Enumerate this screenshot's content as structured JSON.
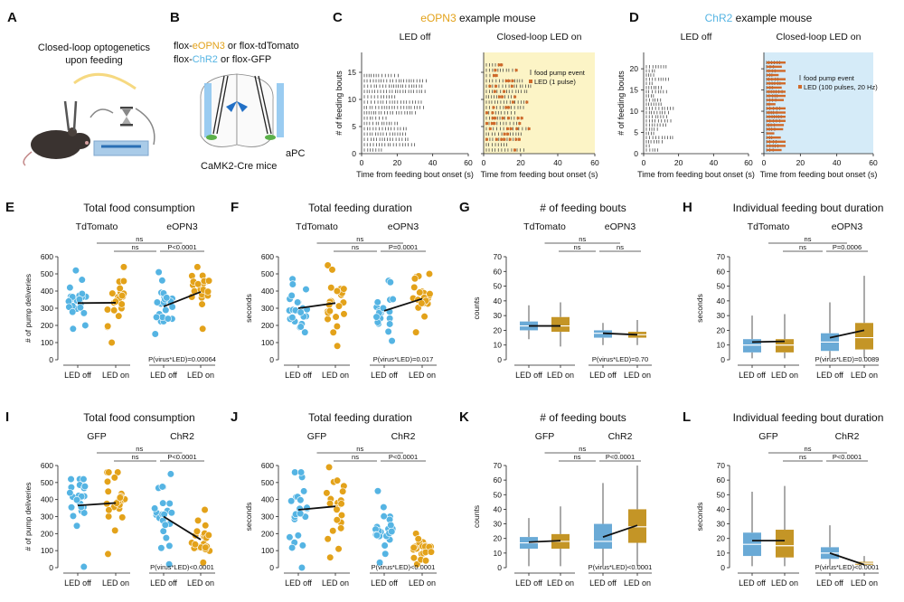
{
  "colors": {
    "blue": "#55b4e3",
    "orange": "#e3a21a",
    "dark_orange": "#d39a1e",
    "box_blue": "#6aaad6",
    "box_orange": "#c49526",
    "tick_orange": "#d06a2a",
    "yellow_bg": "#fcf4c6",
    "blue_bg": "#d5ebf8"
  },
  "panelA": {
    "letter": "A",
    "title1": "Closed-loop optogenetics",
    "title2": "upon feeding"
  },
  "panelB": {
    "letter": "B",
    "line1": [
      {
        "t": "flox-",
        "c": "#111"
      },
      {
        "t": "eOPN3",
        "c": "#e3a21a"
      },
      {
        "t": " or flox-tdTomato",
        "c": "#111"
      }
    ],
    "line2": [
      {
        "t": "flox-",
        "c": "#111"
      },
      {
        "t": "ChR2",
        "c": "#55b4e3"
      },
      {
        "t": " or flox-GFP",
        "c": "#111"
      }
    ],
    "region": "aPC",
    "mouse": "CaMK2-Cre mice"
  },
  "rasters": [
    {
      "letter": "C",
      "title": "eOPN3",
      "title_suffix": " example mouse",
      "title_color": "#e3a21a",
      "left_label": "LED off",
      "right_label": "Closed-loop LED on",
      "ylabel": "# of feeding bouts",
      "xlabel": "Time from feeding bout onset (s)",
      "yticks": [
        "0",
        "5",
        "10",
        "15"
      ],
      "xticks": [
        "0",
        "20",
        "40",
        "60"
      ],
      "legend1": "food pump event",
      "legend2": "LED (1 pulse)",
      "bouts_off": 15,
      "bouts_on": 17,
      "bg": "#fcf4c6"
    },
    {
      "letter": "D",
      "title": "ChR2",
      "title_suffix": " example mouse",
      "title_color": "#55b4e3",
      "left_label": "LED off",
      "right_label": "Closed-loop LED on",
      "ylabel": "# of feeding bouts",
      "xlabel": "Time from feeding bout onset (s)",
      "yticks": [
        "0",
        "5",
        "10",
        "15",
        "20"
      ],
      "xticks": [
        "0",
        "20",
        "40",
        "60"
      ],
      "legend1": "food pump event",
      "legend2": "LED (100 pulses, 20 Hz)",
      "bouts_off": 21,
      "bouts_on": 22,
      "bg": "#d5ebf8"
    }
  ],
  "chart_data": [
    {
      "letter": "E",
      "type": "scatter",
      "title": "Total food consumption",
      "ylabel": "# of pump deliveries",
      "ylim": [
        0,
        600
      ],
      "yticks": [
        0,
        100,
        200,
        300,
        400,
        500,
        600
      ],
      "group1": "TdTomato",
      "group2": "eOPN3",
      "group2_color": "#e3a21a",
      "xtick_labels": [
        "LED off",
        "LED on",
        "LED off",
        "LED on"
      ],
      "sig_top": "ns",
      "sig_left": "ns",
      "sig_right": "P<0.0001",
      "interaction": "P(virus*LED)=0.00064",
      "means": [
        330,
        332,
        310,
        395
      ],
      "counts": [
        22,
        22,
        22,
        22
      ],
      "ranges": [
        [
          180,
          520
        ],
        [
          100,
          540
        ],
        [
          150,
          510
        ],
        [
          180,
          540
        ]
      ]
    },
    {
      "letter": "F",
      "type": "scatter",
      "title": "Total feeding duration",
      "ylabel": "seconds",
      "ylim": [
        0,
        600
      ],
      "yticks": [
        0,
        100,
        200,
        300,
        400,
        500,
        600
      ],
      "group1": "TdTomato",
      "group2": "eOPN3",
      "group2_color": "#e3a21a",
      "xtick_labels": [
        "LED off",
        "LED on",
        "LED off",
        "LED on"
      ],
      "sig_top": "ns",
      "sig_left": "ns",
      "sig_right": "P=0.0001",
      "interaction": "P(virus*LED)=0.017",
      "means": [
        300,
        330,
        285,
        355
      ],
      "counts": [
        22,
        22,
        22,
        22
      ],
      "ranges": [
        [
          160,
          470
        ],
        [
          80,
          550
        ],
        [
          110,
          460
        ],
        [
          160,
          500
        ]
      ]
    },
    {
      "letter": "G",
      "type": "box",
      "title": "# of feeding bouts",
      "ylabel": "counts",
      "ylim": [
        0,
        70
      ],
      "yticks": [
        0,
        10,
        20,
        30,
        40,
        50,
        60,
        70
      ],
      "group1": "TdTomato",
      "group2": "eOPN3",
      "group2_color": "#e3a21a",
      "xtick_labels": [
        "LED off",
        "LED on",
        "LED off",
        "LED on"
      ],
      "sig_top": "ns",
      "sig_left": "ns",
      "sig_right": "ns",
      "interaction": "P(virus*LED)=0.70",
      "boxes": [
        [
          14,
          20,
          23,
          26,
          37
        ],
        [
          9,
          19,
          23,
          29,
          39
        ],
        [
          10,
          15,
          18,
          20,
          25
        ],
        [
          10,
          15,
          17,
          19,
          27
        ]
      ],
      "means": [
        23,
        23,
        18,
        17
      ]
    },
    {
      "letter": "H",
      "type": "box",
      "title": "Individual feeding bout duration",
      "ylabel": "seconds",
      "ylim": [
        0,
        70
      ],
      "yticks": [
        0,
        10,
        20,
        30,
        40,
        50,
        60,
        70
      ],
      "group1": "TdTomato",
      "group2": "eOPN3",
      "group2_color": "#e3a21a",
      "xtick_labels": [
        "LED off",
        "LED on",
        "LED off",
        "LED on"
      ],
      "sig_top": "ns",
      "sig_left": "ns",
      "sig_right": "P=0.0006",
      "interaction": "P(virus*LED)=0.0089",
      "boxes": [
        [
          1,
          5,
          10,
          14,
          30
        ],
        [
          1,
          5,
          10,
          14,
          31
        ],
        [
          1,
          6,
          12,
          18,
          39
        ],
        [
          1,
          7,
          15,
          25,
          57
        ]
      ],
      "means": [
        12,
        12.5,
        15,
        20
      ]
    },
    {
      "letter": "I",
      "type": "scatter",
      "title": "Total food consumption",
      "ylabel": "# of pump deliveries",
      "ylim": [
        0,
        600
      ],
      "yticks": [
        0,
        100,
        200,
        300,
        400,
        500,
        600
      ],
      "group1": "GFP",
      "group2": "ChR2",
      "group2_color": "#55b4e3",
      "xtick_labels": [
        "LED off",
        "LED on",
        "LED off",
        "LED on"
      ],
      "sig_top": "ns",
      "sig_left": "ns",
      "sig_right": "P<0.0001",
      "interaction": "P(virus*LED)<0.0001",
      "means": [
        365,
        380,
        300,
        165
      ],
      "counts": [
        22,
        22,
        22,
        22
      ],
      "ranges": [
        [
          5,
          520
        ],
        [
          80,
          560
        ],
        [
          20,
          550
        ],
        [
          30,
          340
        ]
      ]
    },
    {
      "letter": "J",
      "type": "scatter",
      "title": "Total feeding duration",
      "ylabel": "seconds",
      "ylim": [
        0,
        600
      ],
      "yticks": [
        0,
        100,
        200,
        300,
        400,
        500,
        600
      ],
      "group1": "GFP",
      "group2": "ChR2",
      "group2_color": "#55b4e3",
      "xtick_labels": [
        "LED off",
        "LED on",
        "LED off",
        "LED on"
      ],
      "sig_top": "ns",
      "sig_left": "ns",
      "sig_right": "P<0.0001",
      "interaction": "P(virus*LED)<0.0001",
      "means": [
        340,
        360,
        null,
        null
      ],
      "counts": [
        22,
        22,
        22,
        22
      ],
      "ranges": [
        [
          0,
          560
        ],
        [
          60,
          590
        ],
        [
          30,
          450
        ],
        [
          20,
          200
        ]
      ]
    },
    {
      "letter": "K",
      "type": "box",
      "title": "# of feeding bouts",
      "ylabel": "counts",
      "ylim": [
        0,
        70
      ],
      "yticks": [
        0,
        10,
        20,
        30,
        40,
        50,
        60,
        70
      ],
      "group1": "GFP",
      "group2": "ChR2",
      "group2_color": "#55b4e3",
      "xtick_labels": [
        "LED off",
        "LED on",
        "LED off",
        "LED on"
      ],
      "sig_top": "ns",
      "sig_left": "ns",
      "sig_right": "P<0.0001",
      "interaction": "P(virus*LED)<0.0001",
      "boxes": [
        [
          1,
          13,
          17,
          21,
          34
        ],
        [
          1,
          13,
          18,
          23,
          42
        ],
        [
          1,
          13,
          18,
          30,
          58
        ],
        [
          1,
          17,
          28,
          40,
          70
        ]
      ],
      "means": [
        17.5,
        18.5,
        21,
        29
      ]
    },
    {
      "letter": "L",
      "type": "box",
      "title": "Individual feeding bout duration",
      "ylabel": "seconds",
      "ylim": [
        0,
        70
      ],
      "yticks": [
        0,
        10,
        20,
        30,
        40,
        50,
        60,
        70
      ],
      "group1": "GFP",
      "group2": "ChR2",
      "group2_color": "#55b4e3",
      "xtick_labels": [
        "LED off",
        "LED on",
        "LED off",
        "LED on"
      ],
      "sig_top": "ns",
      "sig_left": "ns",
      "sig_right": "P<0.0001",
      "interaction": "P(virus*LED)<0.0001",
      "boxes": [
        [
          1,
          8,
          16,
          24,
          52
        ],
        [
          1,
          7,
          15,
          26,
          56
        ],
        [
          1,
          6,
          10,
          14,
          29
        ],
        [
          1,
          2,
          3,
          4,
          8
        ]
      ],
      "means": [
        18.5,
        18.5,
        10,
        2
      ]
    }
  ]
}
